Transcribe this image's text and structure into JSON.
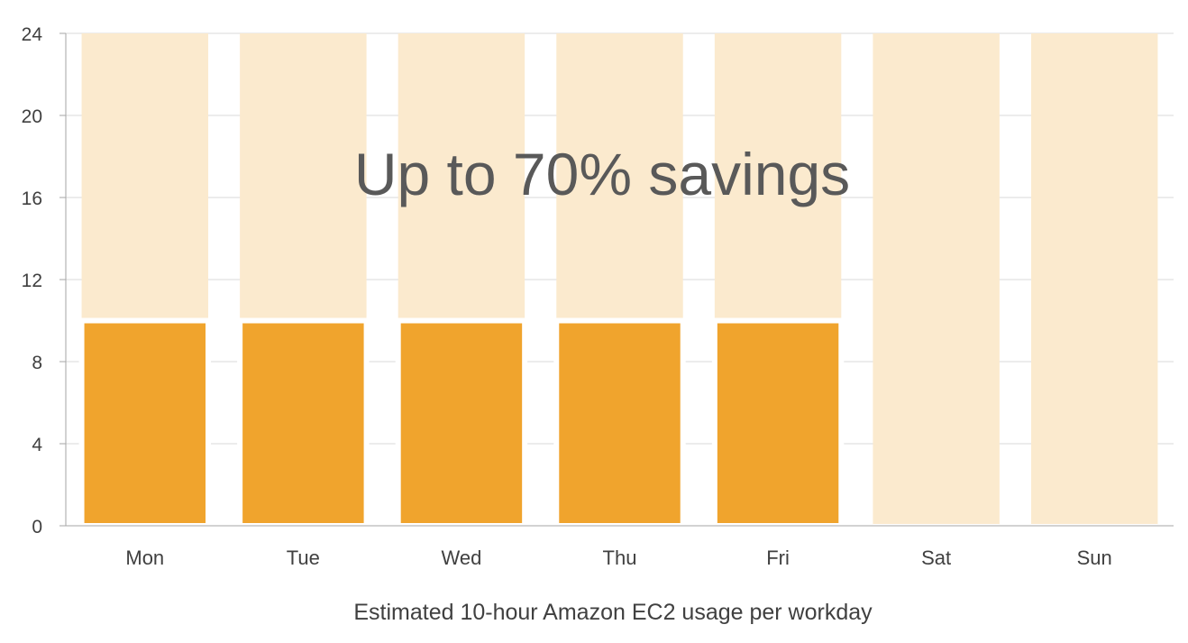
{
  "chart_data": {
    "type": "bar",
    "categories": [
      "Mon",
      "Tue",
      "Wed",
      "Thu",
      "Fri",
      "Sat",
      "Sun"
    ],
    "series": [
      {
        "values": [
          10,
          10,
          10,
          10,
          10,
          0,
          0
        ]
      },
      {
        "values": [
          24,
          24,
          24,
          24,
          24,
          24,
          24
        ]
      }
    ],
    "yticks": [
      0,
      4,
      8,
      12,
      16,
      20,
      24
    ],
    "ylim": [
      0,
      24
    ],
    "xlabel": "Estimated 10-hour Amazon EC2 usage per workday",
    "ylabel": "",
    "annotation": "Up to 70% savings",
    "grid": true,
    "colors": {
      "usage": "#F0A42D",
      "full_day": "#FBEACE",
      "gridline": "#D9D9D9",
      "axis": "#A6A6A6"
    }
  }
}
